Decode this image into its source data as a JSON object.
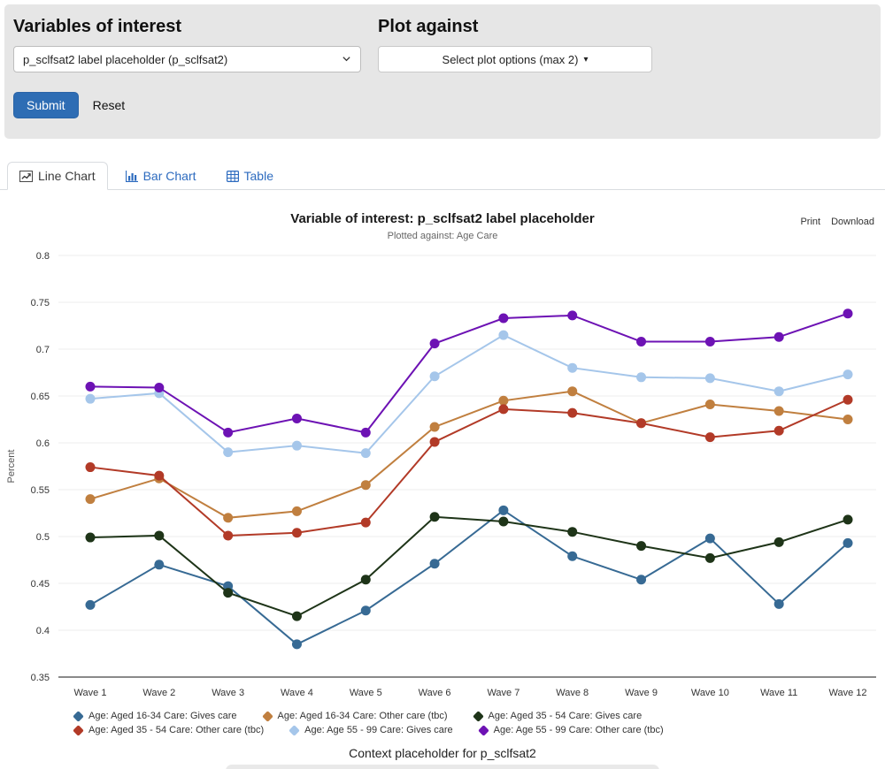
{
  "controls": {
    "variables_label": "Variables of interest",
    "variables_value": "p_sclfsat2 label placeholder (p_sclfsat2)",
    "plot_against_label": "Plot against",
    "plot_against_value": "Select plot options (max 2)",
    "submit_label": "Submit",
    "reset_label": "Reset"
  },
  "tabs": [
    {
      "label": "Line Chart",
      "active": true
    },
    {
      "label": "Bar Chart",
      "active": false
    },
    {
      "label": "Table",
      "active": false
    }
  ],
  "chart_header": {
    "title": "Variable of interest: p_sclfsat2 label placeholder",
    "subtitle": "Plotted against: Age Care",
    "print_label": "Print",
    "download_label": "Download"
  },
  "footer": {
    "context_text": "Context placeholder for p_sclfsat2"
  },
  "chart_data": {
    "type": "line",
    "title": "Variable of interest: p_sclfsat2 label placeholder",
    "subtitle": "Plotted against: Age Care",
    "xlabel": "",
    "ylabel": "Percent",
    "ylim": [
      0.35,
      0.8
    ],
    "ytick_step": 0.05,
    "grid": true,
    "legend_position": "bottom",
    "categories": [
      "Wave 1",
      "Wave 2",
      "Wave 3",
      "Wave 4",
      "Wave 5",
      "Wave 6",
      "Wave 7",
      "Wave 8",
      "Wave 9",
      "Wave 10",
      "Wave 11",
      "Wave 12"
    ],
    "series": [
      {
        "name": "Age: Aged 16-34 Care: Gives care",
        "color": "#376a94",
        "values": [
          0.427,
          0.47,
          0.447,
          0.385,
          0.421,
          0.471,
          0.528,
          0.479,
          0.454,
          0.498,
          0.428,
          0.493
        ]
      },
      {
        "name": "Age: Aged 16-34 Care: Other care (tbc)",
        "color": "#c07f3f",
        "values": [
          0.54,
          0.562,
          0.52,
          0.527,
          0.555,
          0.617,
          0.645,
          0.655,
          0.621,
          0.641,
          0.634,
          0.625
        ]
      },
      {
        "name": "Age: Aged 35 - 54 Care: Gives care",
        "color": "#1e3418",
        "values": [
          0.499,
          0.501,
          0.44,
          0.415,
          0.454,
          0.521,
          0.516,
          0.505,
          0.49,
          0.477,
          0.494,
          0.518
        ]
      },
      {
        "name": "Age: Aged 35 - 54 Care: Other care (tbc)",
        "color": "#b23a27",
        "values": [
          0.574,
          0.565,
          0.501,
          0.504,
          0.515,
          0.601,
          0.636,
          0.632,
          0.621,
          0.606,
          0.613,
          0.646
        ]
      },
      {
        "name": "Age: Age 55 - 99 Care: Gives care",
        "color": "#a5c6ea",
        "values": [
          0.647,
          0.653,
          0.59,
          0.597,
          0.589,
          0.671,
          0.715,
          0.68,
          0.67,
          0.669,
          0.655,
          0.673
        ]
      },
      {
        "name": "Age: Age 55 - 99 Care: Other care (tbc)",
        "color": "#6d12b4",
        "values": [
          0.66,
          0.659,
          0.611,
          0.626,
          0.611,
          0.706,
          0.733,
          0.736,
          0.708,
          0.708,
          0.713,
          0.738
        ]
      }
    ]
  }
}
